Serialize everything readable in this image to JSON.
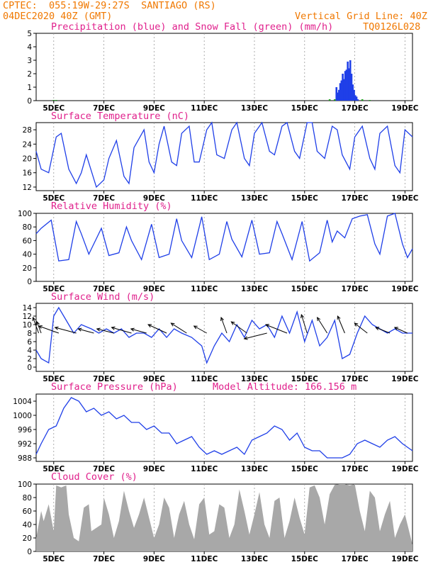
{
  "header": {
    "line1": "CPTEC:  055:19W-29:27S  SANTIAGO (RS)",
    "line2": "04DEC2020 40Z (GMT)",
    "grid_note": "Vertical Grid Line: 40Z",
    "code": "TQ0126L028"
  },
  "colors": {
    "header": "#f07800",
    "title": "#e0208c",
    "line": "#1f3fe8",
    "precip": "#1f3fe8",
    "snow": "#1aa01a",
    "cloud": "#a8a8a8",
    "arrow": "#000000",
    "grid": "#9a9a9a"
  },
  "x_ticks": [
    "5DEC",
    "7DEC",
    "9DEC",
    "11DEC",
    "13DEC",
    "15DEC",
    "17DEC",
    "19DEC"
  ],
  "x_tick_days": [
    5,
    7,
    9,
    11,
    13,
    15,
    17,
    19
  ],
  "x_range": [
    4.3,
    19.3
  ],
  "chart_data": [
    {
      "type": "bar",
      "title": "Precipitation (blue) and Snow Fall (green) (mm/h)",
      "ylim": [
        0,
        5
      ],
      "yticks": [
        0,
        1,
        2,
        3,
        4,
        5
      ],
      "series": [
        {
          "name": "blue",
          "x": [
            16.27,
            16.32,
            16.37,
            16.42,
            16.47,
            16.52,
            16.57,
            16.62,
            16.67,
            16.72,
            16.77,
            16.82,
            16.87,
            16.92,
            16.97,
            17.02,
            17.07,
            17.12
          ],
          "values": [
            1.0,
            0.6,
            0.8,
            1.3,
            1.5,
            2.0,
            1.6,
            2.2,
            2.3,
            2.9,
            2.4,
            3.0,
            2.0,
            1.2,
            0.8,
            0.4,
            0.3,
            0.1
          ]
        },
        {
          "name": "green",
          "x": [
            5.0,
            5.1,
            16.0,
            16.2,
            17.3,
            17.6
          ],
          "values": [
            0.05,
            0.05,
            0.1,
            0.1,
            0.1,
            0.05
          ]
        }
      ]
    },
    {
      "type": "line",
      "title": "Surface Temperature (nC)",
      "ylim": [
        11,
        30
      ],
      "yticks": [
        12,
        16,
        20,
        24,
        28
      ],
      "x": [
        4.3,
        4.5,
        4.8,
        5.1,
        5.3,
        5.6,
        5.9,
        6.1,
        6.3,
        6.7,
        7.0,
        7.2,
        7.5,
        7.8,
        8.0,
        8.2,
        8.6,
        8.8,
        9.0,
        9.2,
        9.4,
        9.7,
        9.9,
        10.1,
        10.4,
        10.6,
        10.8,
        11.1,
        11.3,
        11.5,
        11.8,
        12.1,
        12.3,
        12.6,
        12.8,
        13.0,
        13.3,
        13.6,
        13.8,
        14.1,
        14.3,
        14.6,
        14.8,
        15.1,
        15.3,
        15.5,
        15.8,
        16.1,
        16.3,
        16.5,
        16.8,
        17.0,
        17.3,
        17.6,
        17.8,
        18.0,
        18.3,
        18.6,
        18.8,
        19.0,
        19.3
      ],
      "values": [
        22,
        17,
        16,
        26,
        27,
        17,
        13,
        16,
        21,
        12,
        14,
        20,
        25,
        15,
        13,
        23,
        28,
        19,
        16,
        24,
        29,
        19,
        18,
        27,
        29,
        19,
        19,
        28,
        30,
        21,
        20,
        28,
        30,
        20,
        18,
        27,
        30,
        22,
        21,
        29,
        30,
        22,
        20,
        30,
        30,
        22,
        20,
        29,
        28,
        21,
        17,
        26,
        29,
        20,
        17,
        27,
        29,
        18,
        16,
        28,
        26
      ]
    },
    {
      "type": "line",
      "title": "Relative Humidity (%)",
      "ylim": [
        0,
        100
      ],
      "yticks": [
        0,
        20,
        40,
        60,
        80,
        100
      ],
      "x": [
        4.3,
        4.5,
        4.9,
        5.2,
        5.6,
        5.9,
        6.1,
        6.4,
        6.9,
        7.2,
        7.6,
        7.9,
        8.1,
        8.5,
        8.9,
        9.2,
        9.6,
        9.9,
        10.1,
        10.5,
        10.9,
        11.2,
        11.6,
        11.9,
        12.1,
        12.5,
        12.9,
        13.2,
        13.6,
        13.9,
        14.1,
        14.5,
        14.9,
        15.2,
        15.6,
        15.9,
        16.1,
        16.3,
        16.6,
        16.9,
        17.2,
        17.5,
        17.8,
        18.0,
        18.3,
        18.6,
        18.9,
        19.1,
        19.3
      ],
      "values": [
        70,
        78,
        90,
        30,
        32,
        88,
        70,
        40,
        78,
        38,
        42,
        80,
        60,
        32,
        84,
        35,
        40,
        92,
        60,
        35,
        95,
        32,
        40,
        88,
        62,
        36,
        90,
        40,
        42,
        88,
        70,
        32,
        88,
        30,
        42,
        90,
        58,
        74,
        64,
        92,
        96,
        98,
        55,
        40,
        96,
        100,
        55,
        35,
        48
      ]
    },
    {
      "type": "line",
      "title": "Surface Wind (m/s)",
      "ylim": [
        -1,
        15
      ],
      "yticks": [
        0,
        2,
        4,
        6,
        8,
        10,
        12,
        14
      ],
      "x": [
        4.3,
        4.5,
        4.8,
        5.0,
        5.2,
        5.5,
        5.8,
        6.1,
        6.5,
        6.8,
        7.1,
        7.4,
        7.7,
        8.0,
        8.3,
        8.6,
        8.9,
        9.2,
        9.5,
        9.8,
        10.1,
        10.5,
        10.9,
        11.1,
        11.4,
        11.7,
        12.0,
        12.3,
        12.6,
        12.9,
        13.2,
        13.5,
        13.8,
        14.1,
        14.4,
        14.7,
        15.0,
        15.3,
        15.6,
        15.9,
        16.2,
        16.5,
        16.8,
        17.1,
        17.4,
        17.7,
        18.0,
        18.3,
        18.6,
        18.9,
        19.3
      ],
      "values": [
        4,
        2,
        1,
        12,
        14,
        11,
        8,
        10,
        9,
        8,
        9,
        8,
        9,
        7,
        8,
        8,
        7,
        9,
        7,
        9,
        8,
        7,
        5,
        1,
        5,
        8,
        6,
        10,
        7,
        11,
        9,
        10,
        7,
        12,
        8,
        13,
        6,
        11,
        5,
        7,
        11,
        2,
        3,
        8,
        12,
        10,
        9,
        8,
        9,
        8,
        8
      ],
      "arrows": [
        {
          "x": 4.4,
          "dx": -8,
          "dy": -22
        },
        {
          "x": 4.5,
          "dx": -6,
          "dy": -16
        },
        {
          "x": 5.2,
          "dx": -28,
          "dy": -10
        },
        {
          "x": 5.9,
          "dx": -30,
          "dy": -8
        },
        {
          "x": 6.6,
          "dx": -22,
          "dy": -6
        },
        {
          "x": 7.4,
          "dx": -24,
          "dy": -6
        },
        {
          "x": 8.1,
          "dx": -28,
          "dy": -8
        },
        {
          "x": 8.7,
          "dx": -22,
          "dy": -6
        },
        {
          "x": 9.5,
          "dx": -26,
          "dy": -12
        },
        {
          "x": 10.3,
          "dx": -22,
          "dy": -14
        },
        {
          "x": 11.1,
          "dx": -18,
          "dy": -10
        },
        {
          "x": 11.9,
          "dx": -8,
          "dy": -22
        },
        {
          "x": 12.7,
          "dx": -22,
          "dy": -16
        },
        {
          "x": 13.5,
          "dx": -32,
          "dy": 8
        },
        {
          "x": 14.3,
          "dx": -30,
          "dy": -12
        },
        {
          "x": 15.1,
          "dx": -8,
          "dy": -26
        },
        {
          "x": 15.9,
          "dx": -14,
          "dy": -22
        },
        {
          "x": 16.6,
          "dx": -10,
          "dy": -24
        },
        {
          "x": 17.5,
          "dx": -18,
          "dy": -14
        },
        {
          "x": 18.4,
          "dx": -20,
          "dy": -8
        },
        {
          "x": 19.1,
          "dx": -18,
          "dy": -8
        }
      ]
    },
    {
      "type": "line",
      "title": "Surface Pressure (hPa)",
      "annotation": "Model Altitude: 166.156 m",
      "ylim": [
        987,
        1006
      ],
      "yticks": [
        988,
        992,
        996,
        1000,
        1004
      ],
      "x": [
        4.3,
        4.5,
        4.8,
        5.1,
        5.4,
        5.7,
        6.0,
        6.3,
        6.6,
        6.9,
        7.2,
        7.5,
        7.8,
        8.1,
        8.4,
        8.7,
        9.0,
        9.3,
        9.6,
        9.9,
        10.2,
        10.5,
        10.8,
        11.1,
        11.4,
        11.7,
        12.0,
        12.3,
        12.6,
        12.9,
        13.2,
        13.5,
        13.8,
        14.1,
        14.4,
        14.7,
        15.0,
        15.3,
        15.6,
        15.9,
        16.2,
        16.5,
        16.8,
        17.1,
        17.4,
        17.7,
        18.0,
        18.3,
        18.6,
        18.9,
        19.3
      ],
      "values": [
        989,
        992,
        996,
        997,
        1002,
        1005,
        1004,
        1001,
        1002,
        1000,
        1001,
        999,
        1000,
        998,
        998,
        996,
        997,
        995,
        995,
        992,
        993,
        994,
        991,
        989,
        990,
        989,
        990,
        991,
        989,
        993,
        994,
        995,
        997,
        996,
        993,
        995,
        991,
        990,
        990,
        988,
        988,
        988,
        989,
        992,
        993,
        992,
        991,
        993,
        994,
        992,
        990
      ]
    },
    {
      "type": "area",
      "title": "Cloud Cover (%)",
      "ylim": [
        0,
        100
      ],
      "yticks": [
        0,
        20,
        40,
        60,
        80,
        100
      ],
      "x": [
        4.3,
        4.5,
        4.6,
        4.8,
        5.0,
        5.1,
        5.3,
        5.5,
        5.6,
        5.8,
        6.0,
        6.2,
        6.4,
        6.5,
        6.7,
        6.9,
        7.0,
        7.2,
        7.4,
        7.6,
        7.8,
        8.0,
        8.2,
        8.4,
        8.6,
        8.8,
        9.0,
        9.2,
        9.4,
        9.6,
        9.8,
        10.0,
        10.2,
        10.4,
        10.6,
        10.8,
        11.0,
        11.2,
        11.4,
        11.6,
        11.8,
        12.0,
        12.2,
        12.4,
        12.6,
        12.8,
        13.0,
        13.2,
        13.4,
        13.6,
        13.8,
        14.0,
        14.2,
        14.4,
        14.6,
        14.8,
        15.0,
        15.2,
        15.4,
        15.6,
        15.8,
        16.0,
        16.2,
        16.4,
        16.6,
        16.8,
        17.0,
        17.2,
        17.4,
        17.6,
        17.8,
        18.0,
        18.2,
        18.4,
        18.6,
        18.8,
        19.0,
        19.3
      ],
      "values": [
        20,
        60,
        45,
        70,
        30,
        98,
        95,
        98,
        55,
        20,
        15,
        65,
        70,
        30,
        35,
        40,
        80,
        55,
        20,
        45,
        90,
        60,
        35,
        55,
        80,
        50,
        20,
        40,
        80,
        65,
        20,
        55,
        75,
        40,
        18,
        70,
        80,
        25,
        30,
        70,
        65,
        20,
        40,
        92,
        60,
        25,
        55,
        88,
        40,
        20,
        75,
        80,
        20,
        45,
        80,
        50,
        25,
        95,
        98,
        80,
        40,
        85,
        99,
        100,
        100,
        98,
        100,
        60,
        30,
        90,
        80,
        30,
        55,
        75,
        20,
        40,
        55,
        10
      ]
    }
  ]
}
